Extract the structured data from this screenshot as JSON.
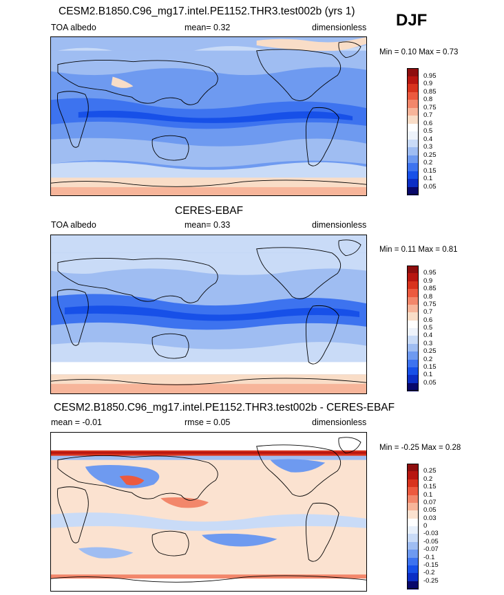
{
  "season": "DJF",
  "colors": {
    "abs": [
      "#08086b",
      "#0b2ec5",
      "#1750e8",
      "#3d73ef",
      "#6e9af0",
      "#9fbdf2",
      "#c9dbf7",
      "#ffffff",
      "#f9ddc7",
      "#f7b59a",
      "#f2876b",
      "#ec5a3f",
      "#d8331d",
      "#b81610",
      "#8e0e0e"
    ],
    "diff": [
      "#08086b",
      "#0b2ec5",
      "#1750e8",
      "#3d73ef",
      "#6e9af0",
      "#9fbdf2",
      "#c9dbf7",
      "#e8f0fb",
      "#ffffff",
      "#fbe2d0",
      "#f7b59a",
      "#f2876b",
      "#ec5a3f",
      "#d8331d",
      "#b81610",
      "#8e0e0e"
    ]
  },
  "panels": [
    {
      "id": "model",
      "title": "CESM2.B1850.C96_mg17.intel.PE1152.THR3.test002b (yrs 1)",
      "left_label": "TOA albedo",
      "center_label": "mean=  0.32",
      "right_label": "dimensionless",
      "minmax": "Min =  0.10 Max =  0.73",
      "levels": [
        "0.95",
        "0.9",
        "0.85",
        "0.8",
        "0.75",
        "0.7",
        "0.6",
        "0.5",
        "0.4",
        "0.3",
        "0.25",
        "0.2",
        "0.15",
        "0.1",
        "0.05"
      ]
    },
    {
      "id": "obs",
      "title": "CERES-EBAF",
      "left_label": "TOA albedo",
      "center_label": "mean=  0.33",
      "right_label": "dimensionless",
      "minmax": "Min =  0.11 Max =  0.81",
      "levels": [
        "0.95",
        "0.9",
        "0.85",
        "0.8",
        "0.75",
        "0.7",
        "0.6",
        "0.5",
        "0.4",
        "0.3",
        "0.25",
        "0.2",
        "0.15",
        "0.1",
        "0.05"
      ]
    },
    {
      "id": "diff",
      "title": "CESM2.B1850.C96_mg17.intel.PE1152.THR3.test002b - CERES-EBAF",
      "left_label": "mean =  -0.01",
      "center_label": "rmse =  0.05",
      "right_label": "dimensionless",
      "minmax": "Min =  -0.25 Max =  0.28",
      "levels": [
        "0.25",
        "0.2",
        "0.15",
        "0.1",
        "0.07",
        "0.05",
        "0.03",
        "0",
        "-0.03",
        "-0.05",
        "-0.07",
        "-0.1",
        "-0.15",
        "-0.2",
        "-0.25"
      ]
    }
  ]
}
